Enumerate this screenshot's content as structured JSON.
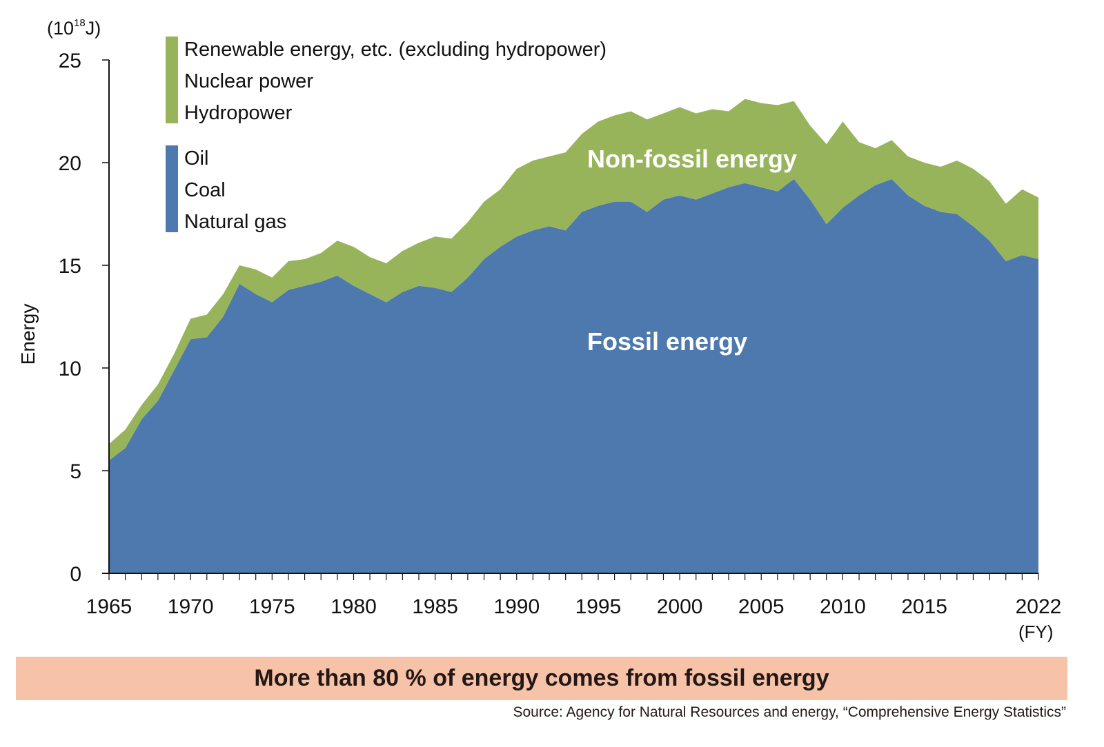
{
  "chart_data": {
    "type": "area",
    "stacked": true,
    "title": "",
    "xlabel": "(FY)",
    "ylabel": "Energy",
    "y_unit": "(10^18J)",
    "ylim": [
      0,
      25
    ],
    "yticks": [
      0,
      5,
      10,
      15,
      20,
      25
    ],
    "xlim": [
      1965,
      2022
    ],
    "xtick_labels": [
      "1965",
      "1970",
      "1975",
      "1980",
      "1985",
      "1990",
      "1995",
      "2000",
      "2005",
      "2010",
      "2015",
      "2022"
    ],
    "x": [
      1965,
      1966,
      1967,
      1968,
      1969,
      1970,
      1971,
      1972,
      1973,
      1974,
      1975,
      1976,
      1977,
      1978,
      1979,
      1980,
      1981,
      1982,
      1983,
      1984,
      1985,
      1986,
      1987,
      1988,
      1989,
      1990,
      1991,
      1992,
      1993,
      1994,
      1995,
      1996,
      1997,
      1998,
      1999,
      2000,
      2001,
      2002,
      2003,
      2004,
      2005,
      2006,
      2007,
      2008,
      2009,
      2010,
      2011,
      2012,
      2013,
      2014,
      2015,
      2016,
      2017,
      2018,
      2019,
      2020,
      2021,
      2022
    ],
    "series": [
      {
        "name": "Fossil energy",
        "components": [
          "Oil",
          "Coal",
          "Natural gas"
        ],
        "color": "#4d79ae",
        "values": [
          5.5,
          6.1,
          7.5,
          8.4,
          9.9,
          11.4,
          11.5,
          12.5,
          14.1,
          13.6,
          13.2,
          13.8,
          14.0,
          14.2,
          14.5,
          14.0,
          13.6,
          13.2,
          13.7,
          14.0,
          13.9,
          13.7,
          14.4,
          15.3,
          15.9,
          16.4,
          16.7,
          16.9,
          16.7,
          17.6,
          17.9,
          18.1,
          18.1,
          17.6,
          18.2,
          18.4,
          18.2,
          18.5,
          18.8,
          19.0,
          18.8,
          18.6,
          19.2,
          18.2,
          17.0,
          17.8,
          18.4,
          18.9,
          19.2,
          18.4,
          17.9,
          17.6,
          17.5,
          16.9,
          16.2,
          15.2,
          15.5,
          15.3
        ]
      },
      {
        "name": "Non-fossil energy",
        "components": [
          "Renewable energy, etc. (excluding hydropower)",
          "Nuclear power",
          "Hydropower"
        ],
        "color": "#97b45b",
        "values": [
          0.8,
          0.9,
          0.7,
          0.8,
          0.8,
          1.0,
          1.1,
          1.1,
          0.9,
          1.2,
          1.2,
          1.4,
          1.3,
          1.4,
          1.7,
          1.9,
          1.8,
          1.9,
          2.0,
          2.1,
          2.5,
          2.6,
          2.7,
          2.8,
          2.8,
          3.3,
          3.4,
          3.4,
          3.8,
          3.8,
          4.1,
          4.2,
          4.4,
          4.5,
          4.2,
          4.3,
          4.2,
          4.1,
          3.7,
          4.1,
          4.1,
          4.2,
          3.8,
          3.6,
          3.9,
          4.2,
          2.6,
          1.8,
          1.9,
          1.9,
          2.1,
          2.2,
          2.6,
          2.8,
          2.9,
          2.8,
          3.2,
          3.0
        ]
      }
    ],
    "area_labels": [
      "Non-fossil energy",
      "Fossil energy"
    ],
    "legend": {
      "placement": "top-left",
      "groups": [
        {
          "color": "#97b45b",
          "items": [
            "Renewable energy, etc. (excluding hydropower)",
            "Nuclear power",
            "Hydropower"
          ]
        },
        {
          "color": "#4d79ae",
          "items": [
            "Oil",
            "Coal",
            "Natural gas"
          ]
        }
      ]
    },
    "grid": false
  },
  "labels": {
    "unit_base": "(10",
    "unit_exp": "18",
    "unit_tail": "J)",
    "ylabel": "Energy",
    "fy": "(FY)",
    "non_fossil": "Non-fossil energy",
    "fossil": "Fossil energy"
  },
  "conclusion": "More than 80 % of energy comes from fossil energy",
  "source": "Source: Agency for Natural Resources and energy, “Comprehensive Energy Statistics”"
}
